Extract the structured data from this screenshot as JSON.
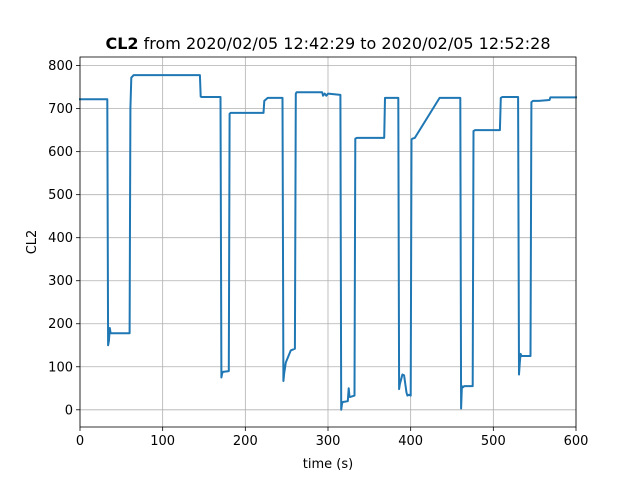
{
  "chart_data": {
    "type": "line",
    "title_bold": "CL2",
    "title_rest": " from 2020/02/05 12:42:29 to 2020/02/05 12:52:28",
    "xlabel": "time (s)",
    "ylabel": "CL2",
    "xlim": [
      0,
      600
    ],
    "ylim": [
      -40,
      820
    ],
    "xticks": [
      0,
      100,
      200,
      300,
      400,
      500,
      600
    ],
    "xtick_labels": [
      "0",
      "100",
      "200",
      "300",
      "400",
      "500",
      "600"
    ],
    "yticks": [
      0,
      100,
      200,
      300,
      400,
      500,
      600,
      700,
      800
    ],
    "ytick_labels": [
      "0",
      "100",
      "200",
      "300",
      "400",
      "500",
      "600",
      "700",
      "800"
    ],
    "grid": true,
    "colors": {
      "line": "#1f77b4"
    },
    "series": [
      {
        "x": [
          0,
          33,
          34,
          35,
          36,
          37,
          38,
          60,
          61,
          62,
          65,
          145,
          146,
          147,
          170,
          171,
          172,
          173,
          180,
          181,
          182,
          185,
          222,
          223,
          227,
          245,
          246,
          247,
          249,
          255,
          260,
          261,
          262,
          265,
          293,
          294,
          296,
          298,
          300,
          315,
          316,
          317,
          318,
          324,
          325,
          326,
          327,
          332,
          333,
          335,
          368,
          369,
          370,
          385,
          386,
          387,
          390,
          392,
          395,
          396,
          398,
          400,
          401,
          402,
          405,
          435,
          436,
          438,
          460,
          461,
          462,
          463,
          465,
          475,
          476,
          478,
          508,
          509,
          511,
          530,
          531,
          532,
          533,
          534,
          535,
          545,
          546,
          548,
          555,
          568,
          569,
          570,
          600
        ],
        "y": [
          722,
          722,
          150,
          160,
          190,
          178,
          178,
          178,
          700,
          772,
          778,
          778,
          728,
          727,
          727,
          75,
          85,
          88,
          90,
          688,
          690,
          690,
          690,
          718,
          725,
          725,
          67,
          85,
          110,
          138,
          142,
          735,
          738,
          738,
          738,
          730,
          735,
          730,
          735,
          732,
          0,
          15,
          18,
          20,
          50,
          30,
          30,
          33,
          630,
          632,
          632,
          725,
          725,
          725,
          48,
          60,
          82,
          80,
          40,
          33,
          35,
          33,
          628,
          630,
          632,
          725,
          725,
          725,
          725,
          3,
          55,
          52,
          55,
          55,
          648,
          650,
          650,
          725,
          727,
          727,
          82,
          110,
          130,
          125,
          125,
          125,
          715,
          718,
          718,
          720,
          726,
          726,
          726
        ]
      }
    ]
  }
}
